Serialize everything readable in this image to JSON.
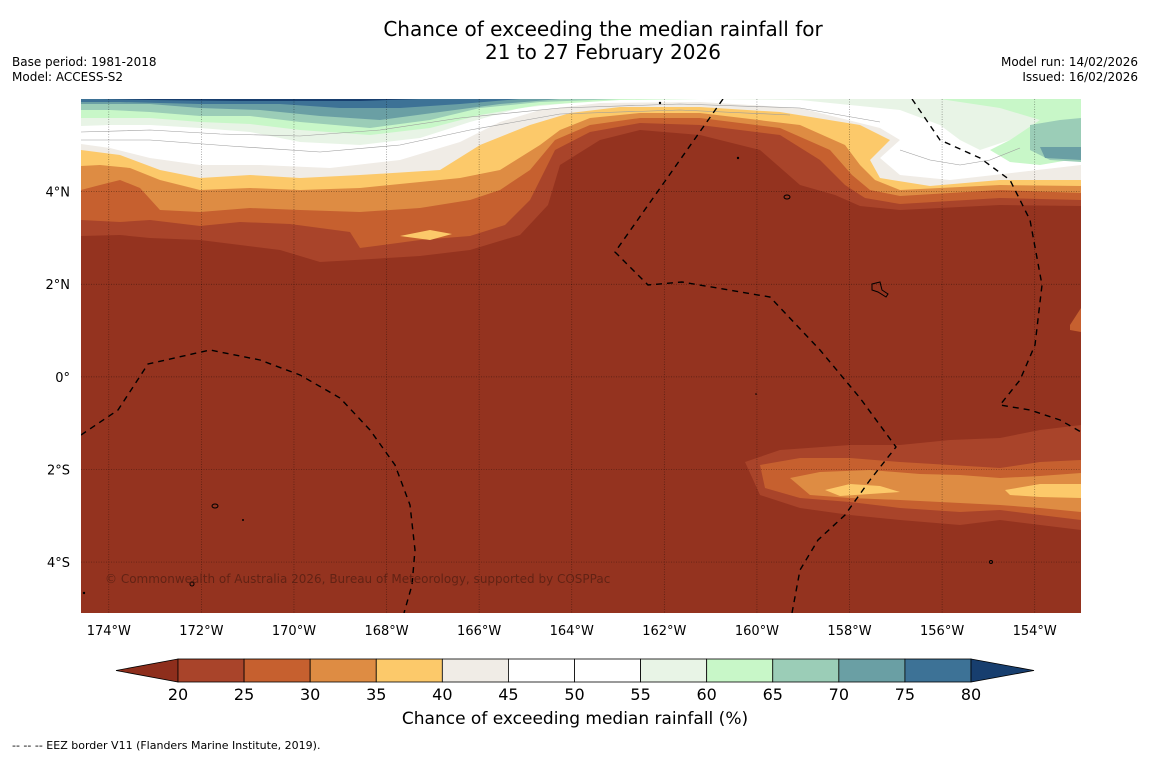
{
  "header": {
    "title_line1": "Chance of exceeding the median rainfall for",
    "title_line2": "21 to 27 February 2026",
    "base_period": "Base period: 1981-2018",
    "model": "Model: ACCESS-S2",
    "model_run": "Model run: 14/02/2026",
    "issued": "Issued: 16/02/2026"
  },
  "map": {
    "copyright": "© Commonwealth of Australia 2026, Bureau of Meteorology, supported by COSPPac",
    "lon_ticks": [
      "174°W",
      "172°W",
      "170°W",
      "168°W",
      "166°W",
      "164°W",
      "162°W",
      "160°W",
      "158°W",
      "156°W",
      "154°W"
    ],
    "lat_ticks": [
      "4°N",
      "2°N",
      "0°",
      "2°S",
      "4°S"
    ],
    "lon_range": [
      -174.6,
      -153.0
    ],
    "lat_range": [
      -5.1,
      6.0
    ]
  },
  "colorbar": {
    "title": "Chance of exceeding median rainfall (%)",
    "ticks": [
      "20",
      "25",
      "30",
      "35",
      "40",
      "45",
      "50",
      "55",
      "60",
      "65",
      "70",
      "75",
      "80"
    ],
    "colors": [
      "#8e2e1c",
      "#a9442a",
      "#c6602f",
      "#de8c43",
      "#fcc96a",
      "#f0ece6",
      "#ffffff",
      "#ffffff",
      "#e8f4e6",
      "#c8f7c8",
      "#9bcdb7",
      "#6a9fa4",
      "#3d7296",
      "#173e6e"
    ]
  },
  "legend": {
    "eez": "--  --  -- EEZ border V11 (Flanders Marine Institute, 2019)."
  }
}
